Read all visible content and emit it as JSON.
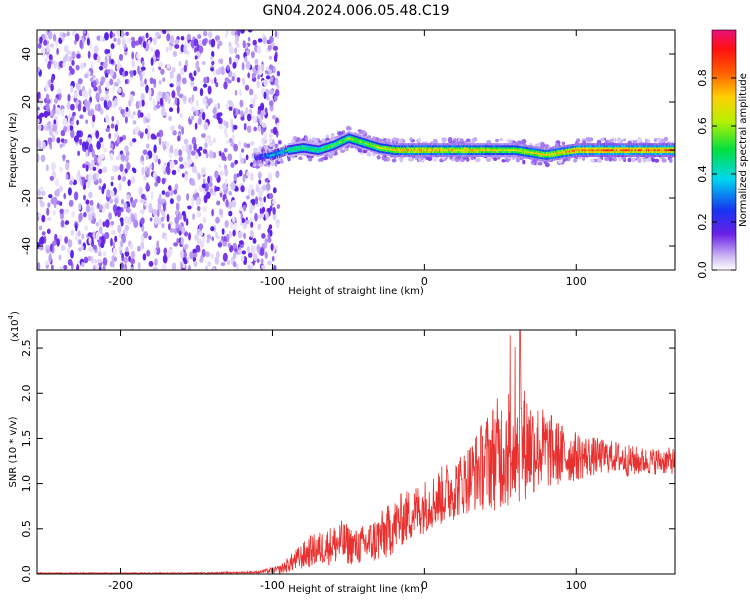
{
  "title": "GN04.2024.006.05.48.C19",
  "colors": {
    "snr_line": "#e8302e",
    "low_amplitude": "#6a20e6",
    "axis": "#000000"
  },
  "chart_data": [
    {
      "type": "heatmap",
      "xlabel": "Height of straight line (km)",
      "ylabel": "Frequency (Hz)",
      "xlim": [
        -255,
        165
      ],
      "ylim": [
        -50,
        50
      ],
      "x_ticks": [
        -200,
        -100,
        0,
        100
      ],
      "y_ticks": [
        -40,
        -20,
        0,
        20,
        40
      ],
      "colorbar": {
        "label": "Normalized spectral amplitude",
        "range": [
          0,
          1
        ],
        "ticks": [
          "0.0",
          "0.2",
          "0.4",
          "0.6",
          "0.8"
        ],
        "colormap": "rainbow (white-violet-blue-cyan-green-yellow-red-magenta)"
      },
      "description_ridge": {
        "x": [
          -110,
          -100,
          -90,
          -80,
          -70,
          -60,
          -50,
          -40,
          -30,
          -20,
          -10,
          0,
          20,
          40,
          60,
          70,
          80,
          90,
          100,
          110,
          130,
          165
        ],
        "frequency": [
          -3,
          -2,
          0,
          1,
          0,
          2,
          5,
          3,
          1,
          0,
          0,
          0,
          0,
          0,
          0,
          -1,
          -2,
          -1,
          0,
          0,
          0,
          0
        ],
        "amplitude": [
          0.3,
          0.45,
          0.5,
          0.5,
          0.5,
          0.55,
          0.6,
          0.6,
          0.65,
          0.7,
          0.75,
          0.75,
          0.75,
          0.7,
          0.65,
          0.7,
          0.7,
          0.75,
          0.8,
          0.85,
          0.85,
          0.85
        ]
      },
      "noise_region_x": [
        -255,
        -100
      ]
    },
    {
      "type": "line",
      "xlabel": "Height of straight line (km)",
      "ylabel": "SNR (10 * v/v)",
      "y_scale_note": "(x10",
      "y_scale_exp": "4",
      "xlim": [
        -255,
        165
      ],
      "ylim": [
        0,
        2.7
      ],
      "x_ticks": [
        -200,
        -100,
        0,
        100
      ],
      "y_ticks": [
        "0.0",
        "0.5",
        "1.0",
        "1.5",
        "2.0",
        "2.5"
      ],
      "series": [
        {
          "x": [
            -255,
            -200,
            -150,
            -110,
            -95,
            -85,
            -75,
            -65,
            -55,
            -45,
            -35,
            -25,
            -15,
            -5,
            5,
            15,
            25,
            35,
            45,
            55,
            65,
            75,
            85,
            95,
            105,
            115,
            125,
            135,
            145,
            155,
            165
          ],
          "y": [
            0.01,
            0.01,
            0.01,
            0.02,
            0.05,
            0.15,
            0.25,
            0.3,
            0.35,
            0.3,
            0.35,
            0.45,
            0.6,
            0.7,
            0.8,
            0.9,
            1.0,
            1.15,
            1.3,
            1.4,
            1.45,
            1.4,
            1.35,
            1.3,
            1.3,
            1.3,
            1.3,
            1.25,
            1.25,
            1.25,
            1.25
          ],
          "spread": [
            0.005,
            0.005,
            0.005,
            0.01,
            0.05,
            0.12,
            0.18,
            0.2,
            0.25,
            0.2,
            0.25,
            0.3,
            0.3,
            0.3,
            0.3,
            0.35,
            0.35,
            0.45,
            0.6,
            0.7,
            0.65,
            0.5,
            0.4,
            0.3,
            0.25,
            0.2,
            0.18,
            0.18,
            0.15,
            0.15,
            0.15
          ],
          "peak_value": 2.7
        }
      ]
    }
  ]
}
